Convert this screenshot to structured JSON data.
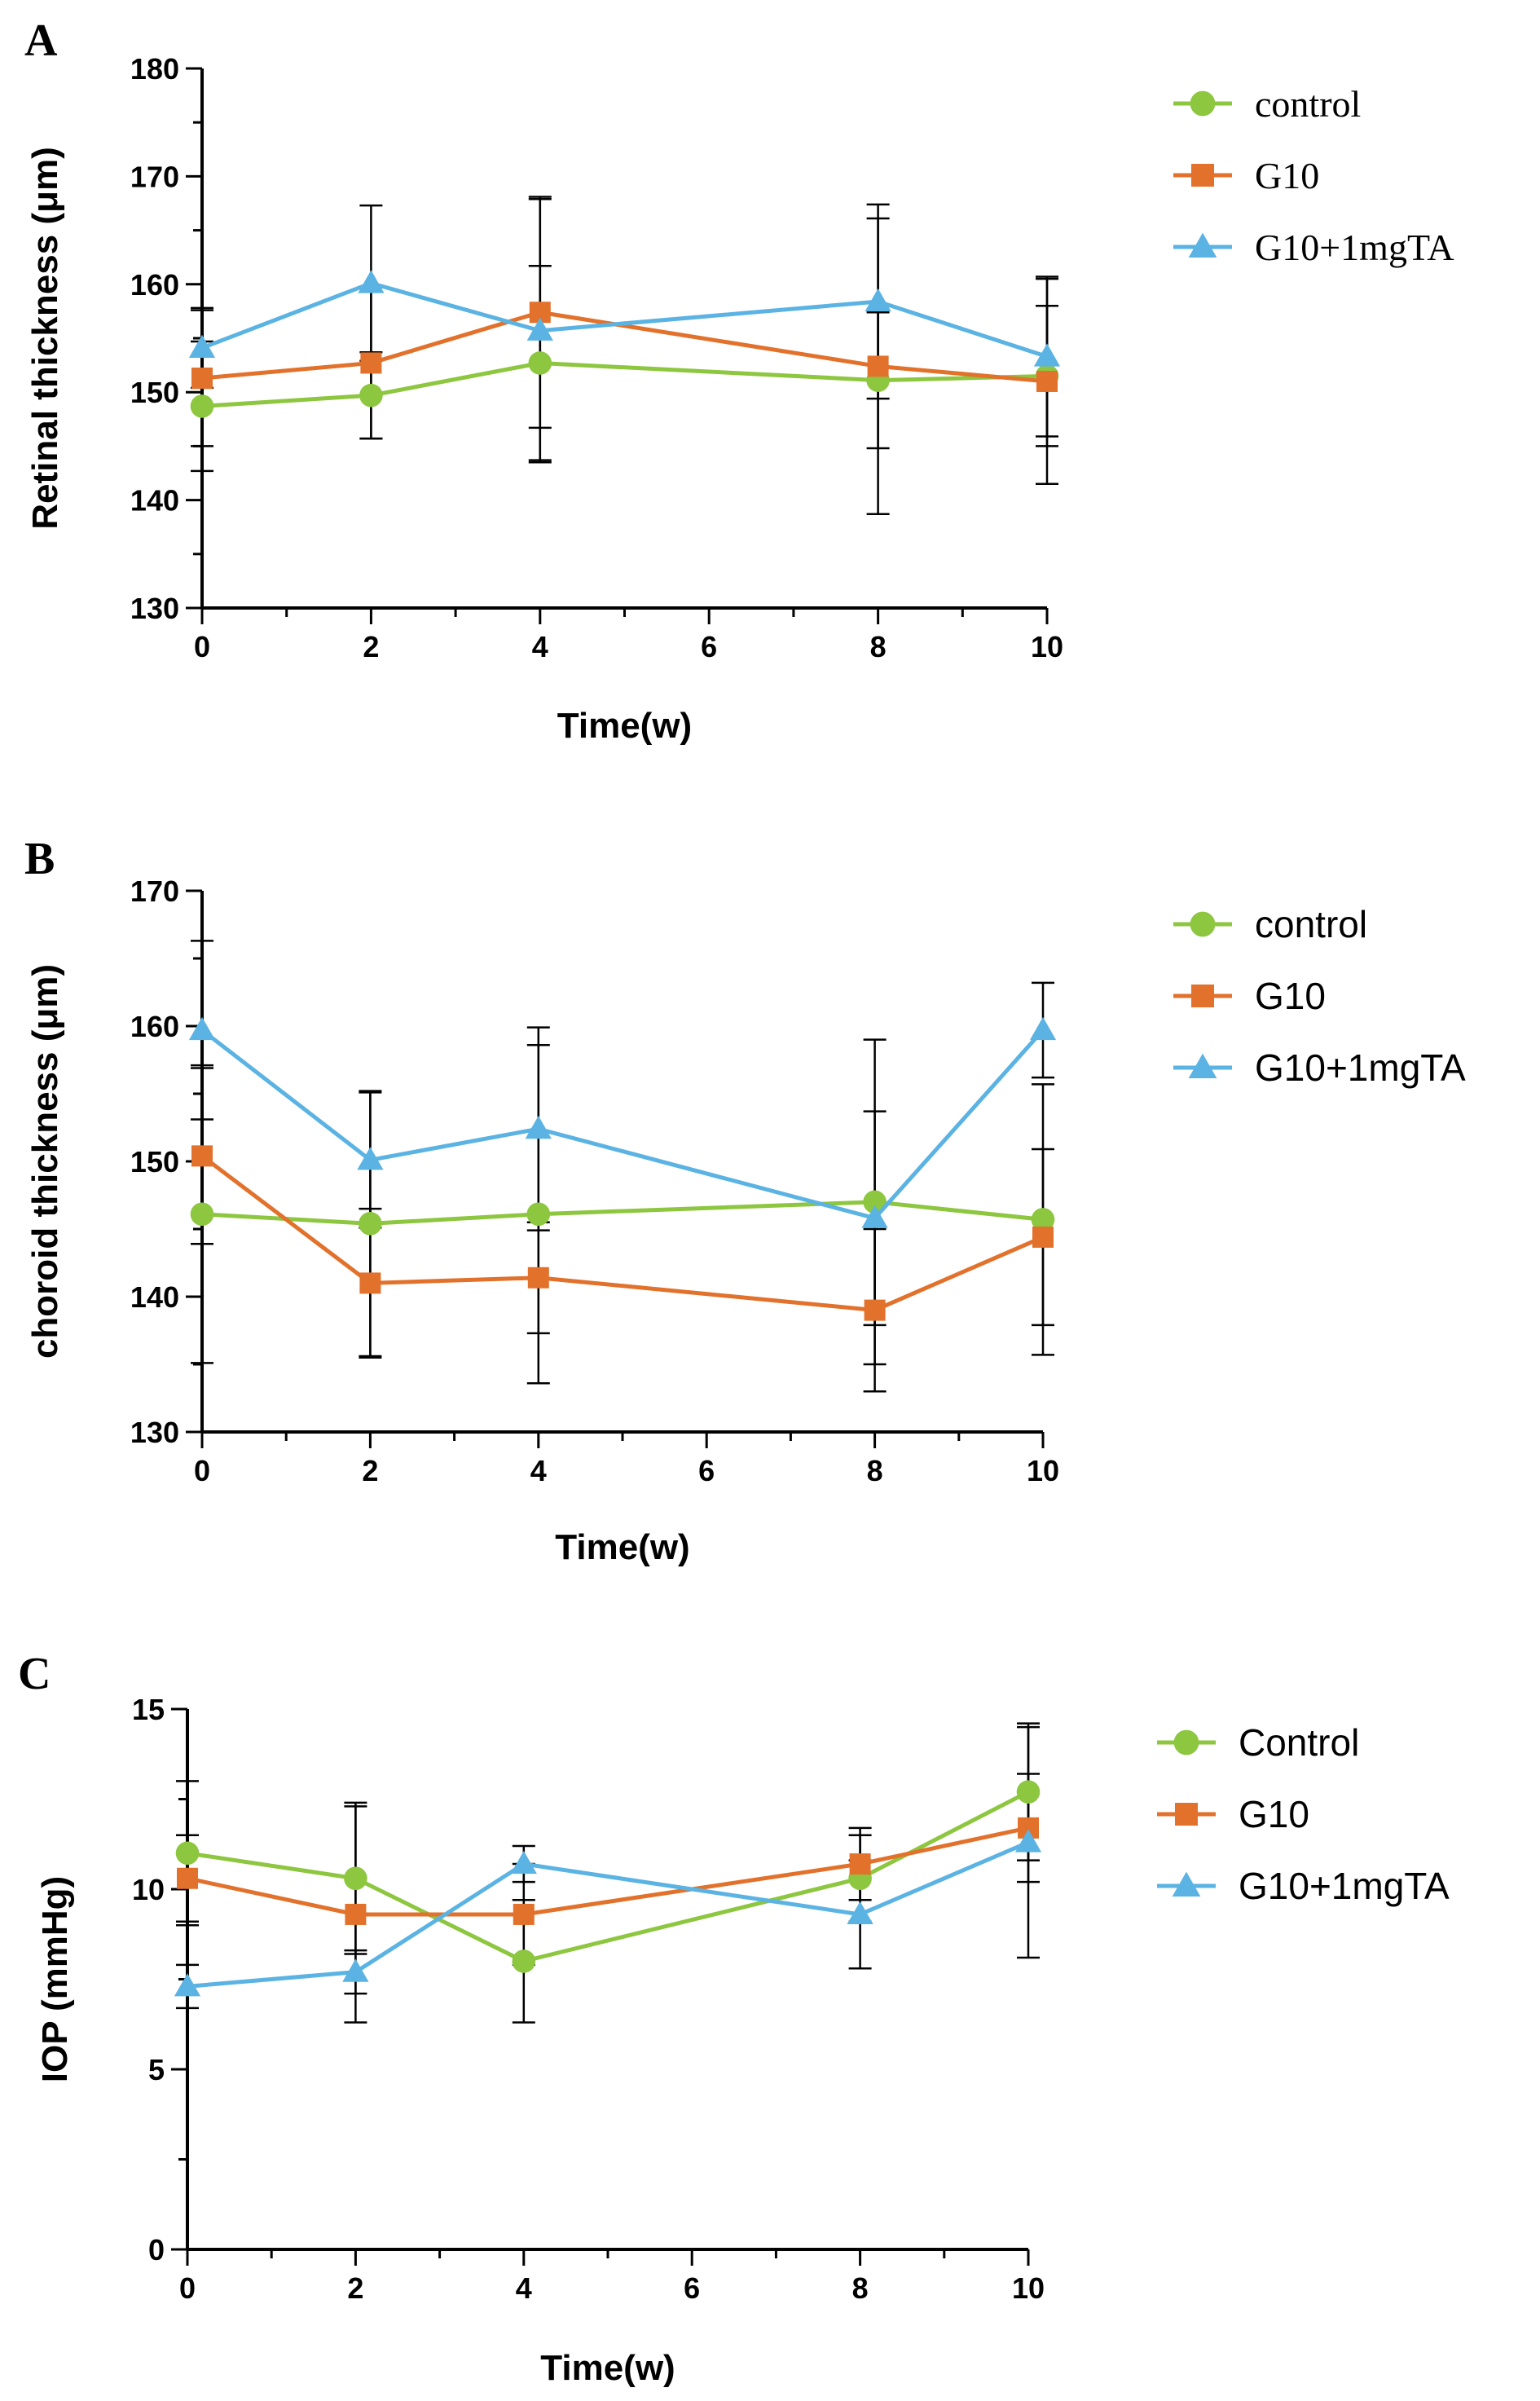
{
  "chart_data": [
    {
      "panel": "A",
      "type": "line",
      "xlabel": "Time(w)",
      "ylabel": "Retinal thickness (μm)",
      "xlim": [
        0,
        10
      ],
      "ylim": [
        130,
        180
      ],
      "xticks": [
        0,
        2,
        4,
        6,
        8,
        10
      ],
      "yticks": [
        130,
        140,
        150,
        160,
        170,
        180
      ],
      "legend_position": "top-right",
      "series": [
        {
          "name": "control",
          "marker": "circle",
          "color": "#8DC63F",
          "x": [
            0,
            2,
            4,
            8,
            10
          ],
          "values": [
            148.7,
            149.7,
            152.7,
            151.1,
            151.5
          ],
          "err": [
            6.0,
            4.0,
            9.0,
            6.3,
            6.5
          ]
        },
        {
          "name": "G10",
          "marker": "square",
          "color": "#E2712B",
          "x": [
            0,
            2,
            4,
            8,
            10
          ],
          "values": [
            151.3,
            152.7,
            157.4,
            152.4,
            151.0
          ],
          "err": [
            6.3,
            7.0,
            10.7,
            13.7,
            9.5
          ]
        },
        {
          "name": "G10+1mgTA",
          "marker": "triangle",
          "color": "#5BB3E3",
          "x": [
            0,
            2,
            4,
            8,
            10
          ],
          "values": [
            154.1,
            160.1,
            155.7,
            158.4,
            153.3
          ],
          "err": [
            3.7,
            7.2,
            12.2,
            9.0,
            7.4
          ]
        }
      ]
    },
    {
      "panel": "B",
      "type": "line",
      "xlabel": "Time(w)",
      "ylabel": "choroid thickness (μm)",
      "xlim": [
        0,
        10
      ],
      "ylim": [
        130,
        170
      ],
      "xticks": [
        0,
        2,
        4,
        6,
        8,
        10
      ],
      "yticks": [
        130,
        140,
        150,
        160,
        170
      ],
      "legend_position": "top-right",
      "series": [
        {
          "name": "control",
          "marker": "circle",
          "color": "#8DC63F",
          "x": [
            0,
            2,
            4,
            8,
            10
          ],
          "values": [
            146.1,
            145.4,
            146.1,
            147.0,
            145.7
          ],
          "err": [
            11.0,
            9.8,
            12.5,
            12.0,
            10.0
          ]
        },
        {
          "name": "G10",
          "marker": "square",
          "color": "#E2712B",
          "x": [
            0,
            2,
            4,
            8,
            10
          ],
          "values": [
            150.4,
            141.0,
            141.4,
            139.0,
            144.4
          ],
          "err": [
            6.5,
            5.5,
            4.1,
            6.0,
            6.5
          ]
        },
        {
          "name": "G10+1mgTA",
          "marker": "triangle",
          "color": "#5BB3E3",
          "x": [
            0,
            2,
            4,
            8,
            10
          ],
          "values": [
            159.7,
            150.1,
            152.4,
            145.8,
            159.7
          ],
          "err": [
            6.6,
            5.0,
            7.5,
            7.9,
            3.5
          ]
        }
      ]
    },
    {
      "panel": "C",
      "type": "line",
      "xlabel": "Time(w)",
      "ylabel": "IOP (mmHg)",
      "xlim": [
        0,
        10
      ],
      "ylim": [
        0,
        15
      ],
      "xticks": [
        0,
        2,
        4,
        6,
        8,
        10
      ],
      "yticks": [
        0,
        5,
        10,
        15
      ],
      "legend_position": "top-right",
      "series": [
        {
          "name": "Control",
          "marker": "circle",
          "color": "#8DC63F",
          "x": [
            0,
            2,
            4,
            8,
            10
          ],
          "values": [
            11.0,
            10.3,
            8.0,
            10.3,
            12.7
          ],
          "err": [
            2.0,
            2.1,
            1.7,
            1.2,
            1.9
          ]
        },
        {
          "name": "G10",
          "marker": "square",
          "color": "#E2712B",
          "x": [
            0,
            2,
            4,
            8,
            10
          ],
          "values": [
            10.3,
            9.3,
            9.3,
            10.7,
            11.7
          ],
          "err": [
            1.2,
            3.0,
            1.4,
            1.0,
            1.5
          ]
        },
        {
          "name": "G10+1mgTA",
          "marker": "triangle",
          "color": "#5BB3E3",
          "x": [
            0,
            2,
            4,
            8,
            10
          ],
          "values": [
            7.3,
            7.7,
            10.7,
            9.3,
            11.3
          ],
          "err": [
            0.6,
            0.6,
            0.5,
            1.5,
            3.2
          ]
        }
      ]
    }
  ]
}
